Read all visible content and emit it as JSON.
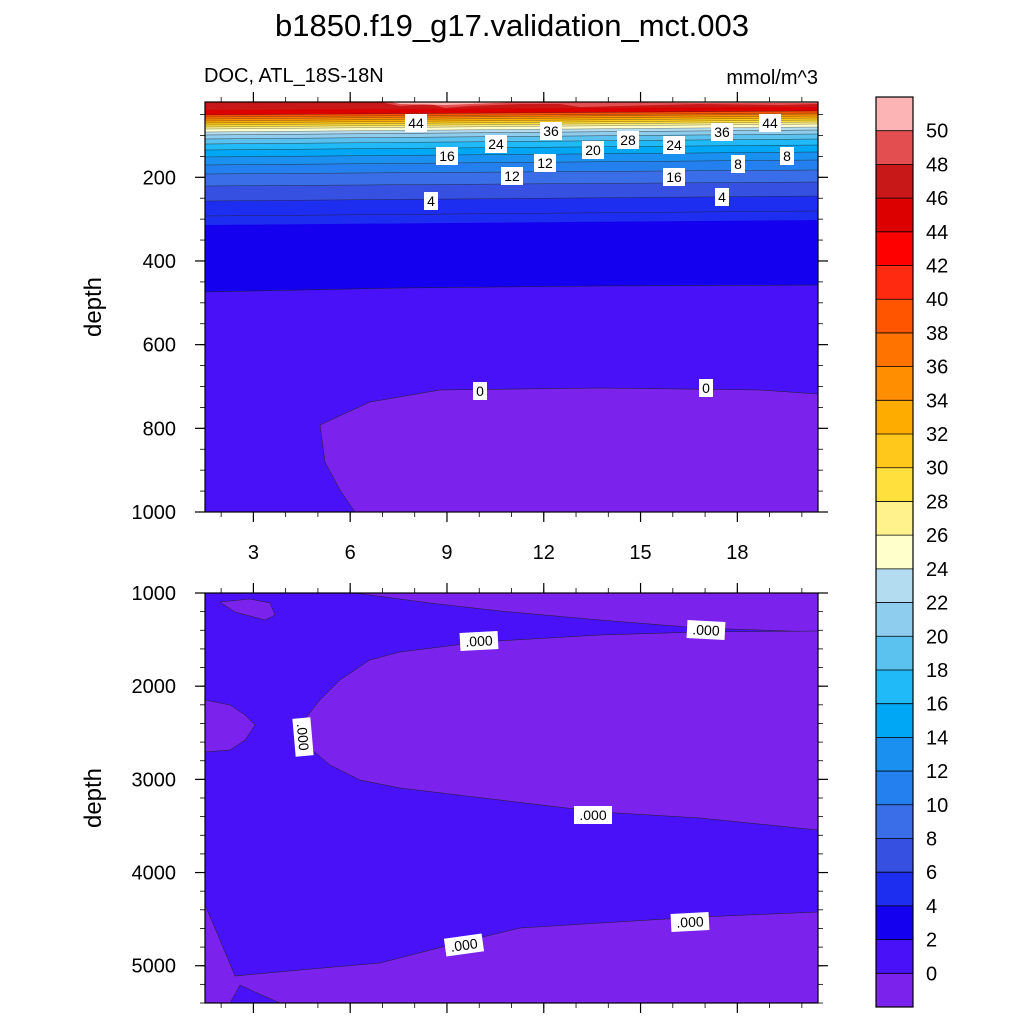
{
  "chart_data": {
    "type": "contour",
    "title": "b1850.f19_g17.validation_mct.003",
    "variable_label": "DOC, ATL_18S-18N",
    "units_label": "mmol/m^3",
    "ylabel": "depth",
    "x_ticks": [
      "3",
      "6",
      "9",
      "12",
      "15",
      "18"
    ],
    "xlim": [
      1.5,
      20.5
    ],
    "upper_panel": {
      "ylim": [
        1000,
        20
      ],
      "y_ticks": [
        "200",
        "400",
        "600",
        "800",
        "1000"
      ],
      "contour_labels": [
        "44",
        "24",
        "36",
        "20",
        "28",
        "24",
        "36",
        "44",
        "16",
        "12",
        "8",
        "8",
        "12",
        "16",
        "4",
        "4",
        "0",
        "0"
      ]
    },
    "lower_panel": {
      "ylim": [
        5400,
        1000
      ],
      "y_ticks": [
        "1000",
        "2000",
        "3000",
        "4000",
        "5000"
      ],
      "contour_labels": [
        ".000",
        ".000",
        ".000",
        ".000",
        ".000",
        ".000"
      ]
    },
    "colorbar": {
      "labels": [
        "50",
        "48",
        "46",
        "44",
        "42",
        "40",
        "38",
        "36",
        "34",
        "32",
        "30",
        "28",
        "26",
        "24",
        "22",
        "20",
        "18",
        "16",
        "14",
        "12",
        "10",
        "8",
        "6",
        "4",
        "2",
        "0"
      ],
      "colors": [
        "#fcb4b4",
        "#e34f50",
        "#c81818",
        "#dc0000",
        "#ff0000",
        "#ff2a0f",
        "#ff5500",
        "#ff7400",
        "#ff8f00",
        "#ffac00",
        "#ffc81a",
        "#ffe03c",
        "#fff28c",
        "#ffffcc",
        "#b3dcf0",
        "#8fcdee",
        "#5bc1ef",
        "#1fbaf7",
        "#00a7f5",
        "#1a91f0",
        "#2480ee",
        "#3a6ee8",
        "#3651e1",
        "#1e2ef0",
        "#1400ef",
        "#4811f7",
        "#7b22ec"
      ]
    }
  }
}
